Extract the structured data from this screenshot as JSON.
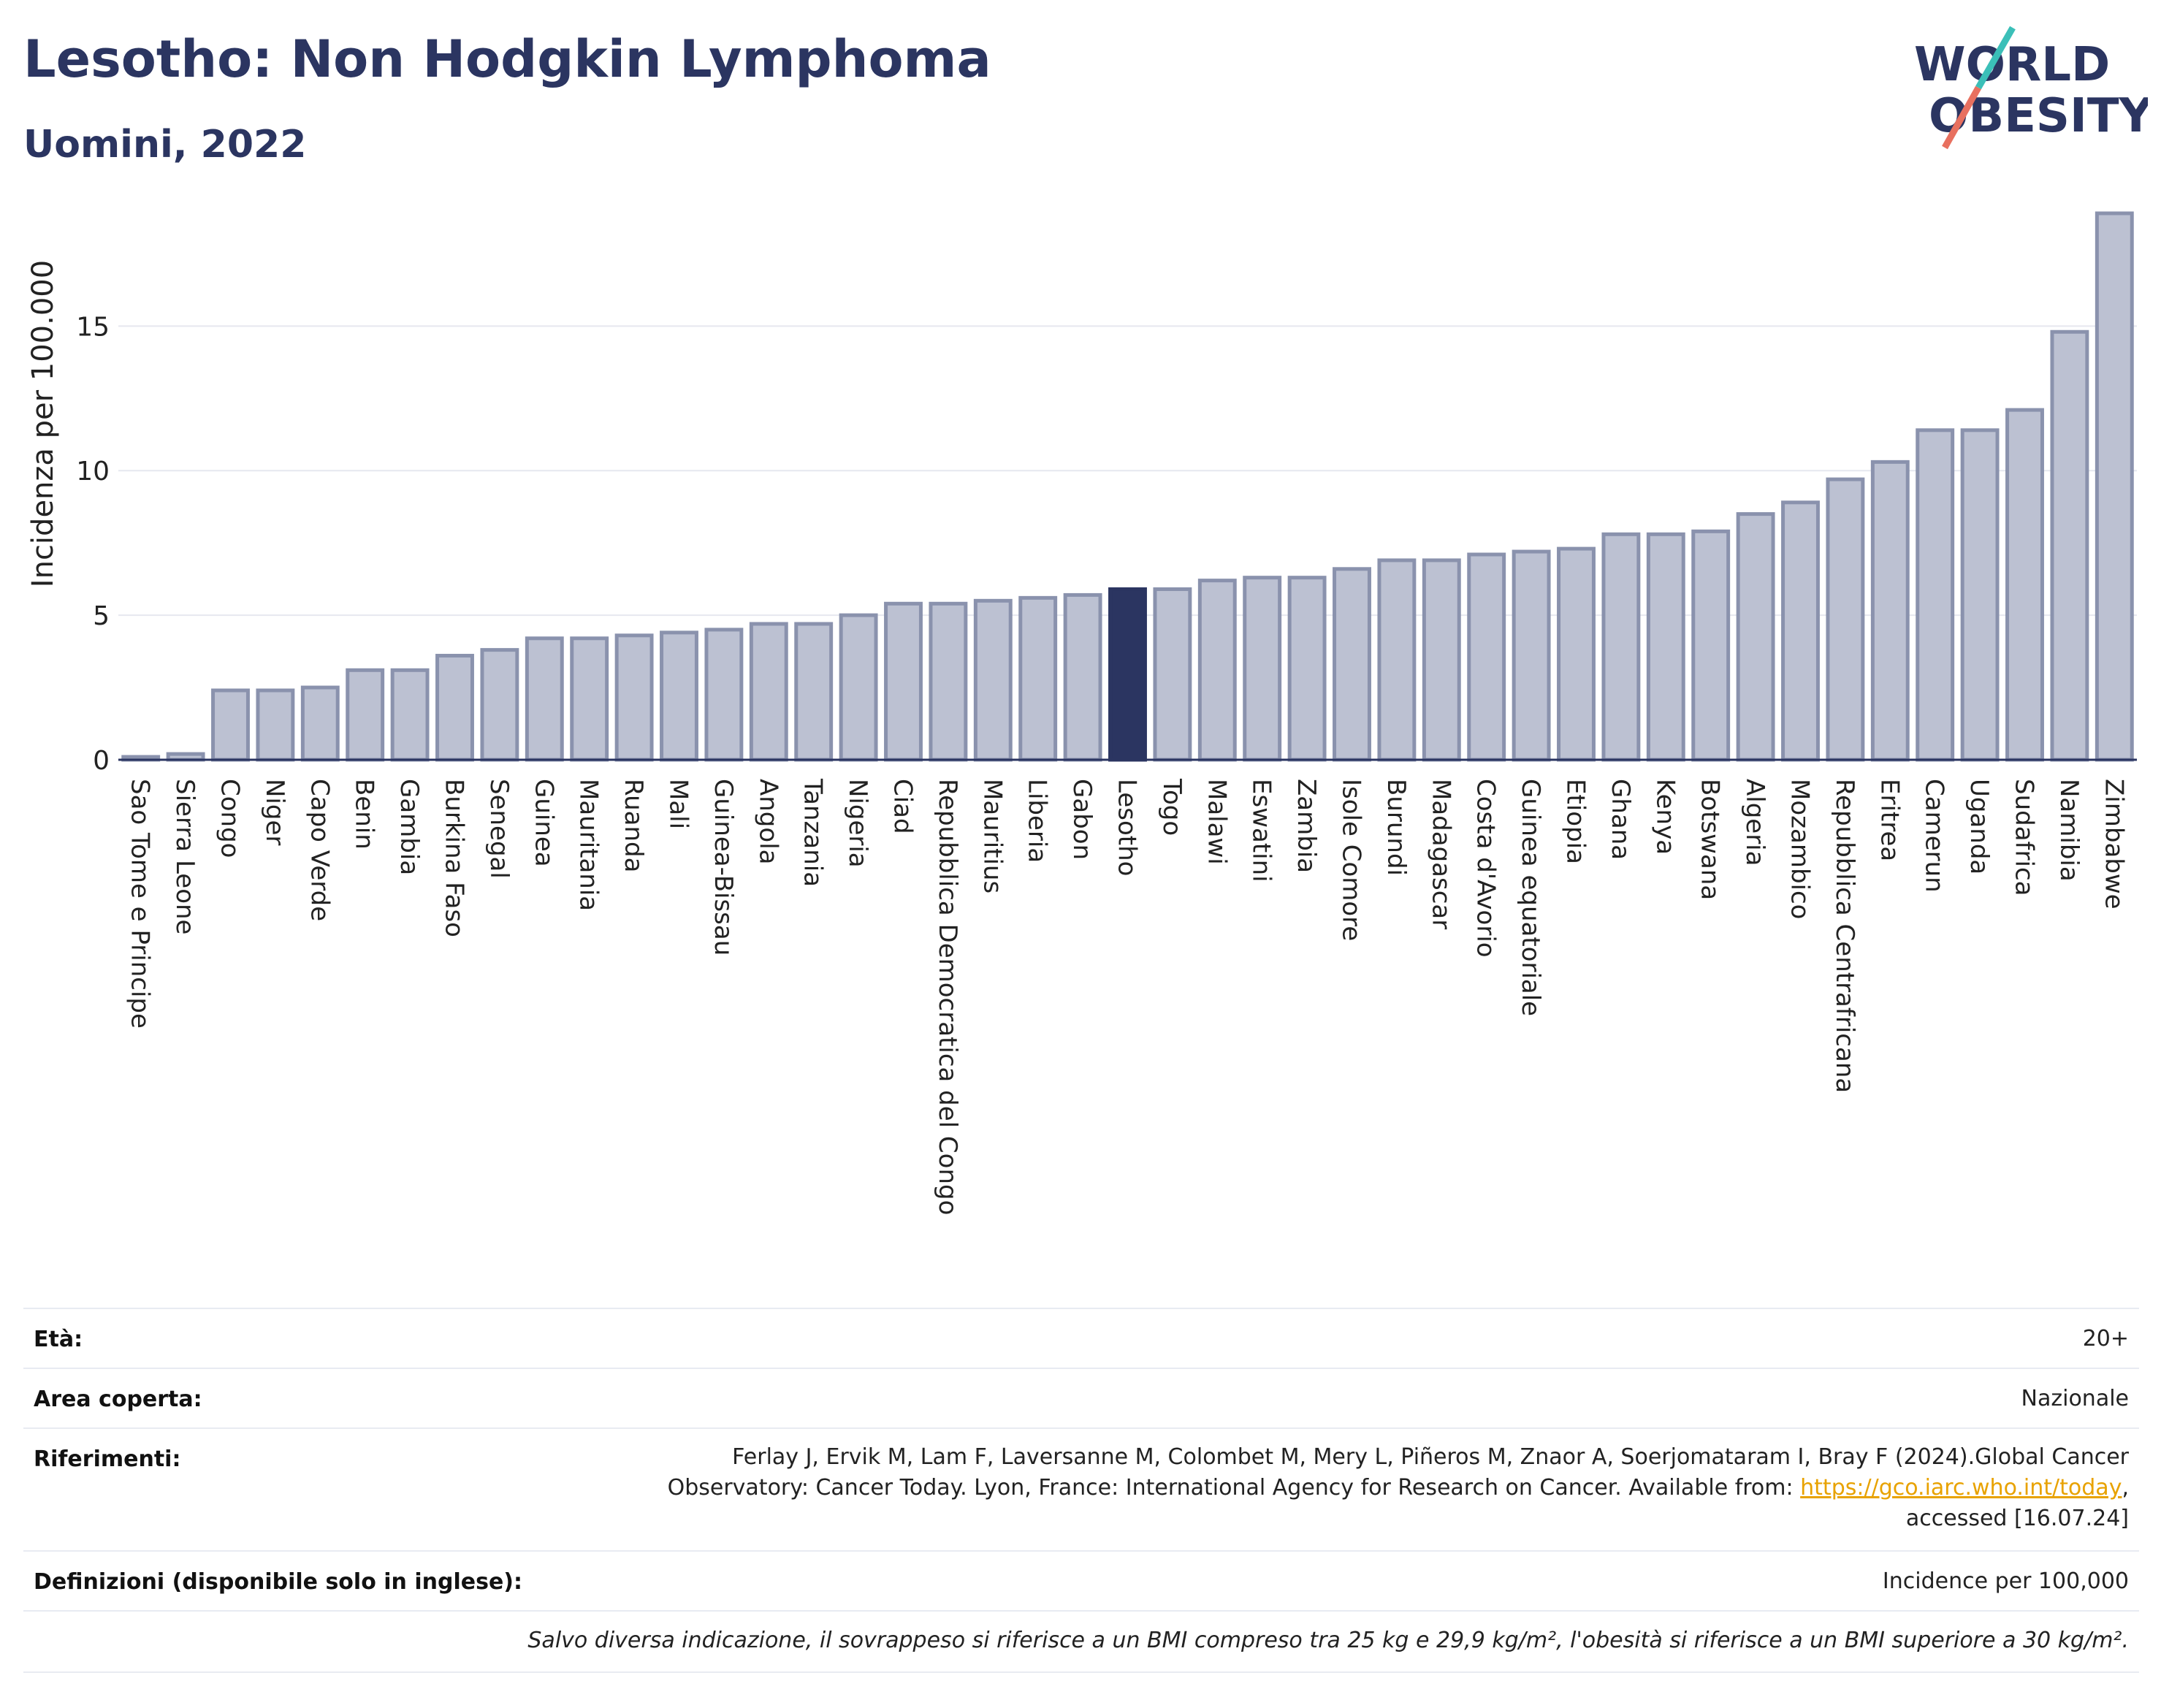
{
  "header": {
    "title": "Lesotho: Non Hodgkin Lymphoma",
    "subtitle": "Uomini, 2022"
  },
  "logo": {
    "line1": "WORLD",
    "line2": "OBESITY",
    "colors": {
      "text": "#2b3561",
      "slash_teal": "#3bbfb8",
      "slash_red": "#e8705f"
    }
  },
  "colors": {
    "bar": "#bcc1d2",
    "bar_border": "#8a92ad",
    "highlight": "#2b3561",
    "grid": "#e6e8ef",
    "axis": "#2b3561"
  },
  "chart_data": {
    "type": "bar",
    "ylabel": "Incidenza per 100.000",
    "ylim": [
      0,
      19
    ],
    "yticks": [
      0,
      5,
      10,
      15
    ],
    "highlight": "Lesotho",
    "grid": true,
    "categories": [
      "Sao Tome e Principe",
      "Sierra Leone",
      "Congo",
      "Niger",
      "Capo Verde",
      "Benin",
      "Gambia",
      "Burkina Faso",
      "Senegal",
      "Guinea",
      "Mauritania",
      "Ruanda",
      "Mali",
      "Guinea-Bissau",
      "Angola",
      "Tanzania",
      "Nigeria",
      "Ciad",
      "Repubblica Democratica del Congo",
      "Mauritius",
      "Liberia",
      "Gabon",
      "Lesotho",
      "Togo",
      "Malawi",
      "Eswatini",
      "Zambia",
      "Isole Comore",
      "Burundi",
      "Madagascar",
      "Costa d'Avorio",
      "Guinea equatoriale",
      "Etiopia",
      "Ghana",
      "Kenya",
      "Botswana",
      "Algeria",
      "Mozambico",
      "Repubblica Centrafricana",
      "Eritrea",
      "Camerun",
      "Uganda",
      "Sudafrica",
      "Namibia",
      "Zimbabwe"
    ],
    "values": [
      0.1,
      0.2,
      2.4,
      2.4,
      2.5,
      3.1,
      3.1,
      3.6,
      3.8,
      4.2,
      4.2,
      4.3,
      4.4,
      4.5,
      4.7,
      4.7,
      5.0,
      5.4,
      5.4,
      5.5,
      5.6,
      5.7,
      5.9,
      5.9,
      6.2,
      6.3,
      6.3,
      6.6,
      6.9,
      6.9,
      7.1,
      7.2,
      7.3,
      7.8,
      7.8,
      7.9,
      8.5,
      8.9,
      9.7,
      10.3,
      11.4,
      11.4,
      12.1,
      14.8,
      18.9
    ]
  },
  "meta": {
    "age_label": "Età:",
    "age_value": "20+",
    "area_label": "Area coperta:",
    "area_value": "Nazionale",
    "refs_label": "Riferimenti:",
    "refs_line1": "Ferlay J, Ervik M, Lam F, Laversanne M, Colombet M, Mery L, Piñeros M, Znaor A, Soerjomataram I, Bray F (2024).Global Cancer",
    "refs_line2_pre": "Observatory: Cancer Today. Lyon, France: International Agency for Research on Cancer. Available from: ",
    "refs_link": "https://gco.iarc.who.int/today",
    "refs_line2_post": ",",
    "refs_line3": "accessed [16.07.24]",
    "defs_label": "Definizioni (disponibile solo in inglese):",
    "defs_value": "Incidence per 100,000",
    "note": "Salvo diversa indicazione, il sovrappeso si riferisce a un BMI compreso tra 25 kg e 29,9 kg/m², l'obesità si riferisce a un BMI superiore a 30 kg/m²."
  }
}
